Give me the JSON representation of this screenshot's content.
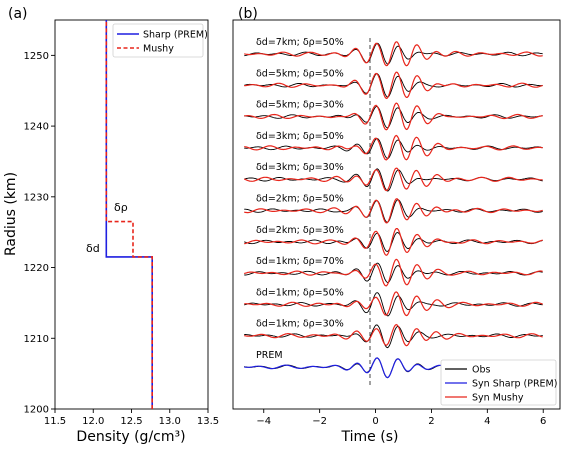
{
  "chart_data": [
    {
      "type": "line",
      "panel_label": "(a)",
      "xlabel": "Density (g/cm³)",
      "ylabel": "Radius (km)",
      "xlim": [
        11.5,
        13.5
      ],
      "ylim": [
        1200,
        1255
      ],
      "x_ticks": [
        "11.5",
        "12.0",
        "12.5",
        "13.0",
        "13.5"
      ],
      "y_ticks": [
        "1200",
        "1210",
        "1220",
        "1230",
        "1240",
        "1250"
      ],
      "legend_position": "top-right",
      "annotations": [
        "δd",
        "δρ"
      ],
      "colors": {
        "sharp": "#1f1fe0",
        "mushy": "#e8261c"
      },
      "series": [
        {
          "name": "Sharp (PREM)",
          "style": "solid",
          "x": [
            12.77,
            12.77,
            12.17,
            12.17
          ],
          "y": [
            1200,
            1221.5,
            1221.5,
            1255
          ]
        },
        {
          "name": "Mushy",
          "style": "dashed",
          "x": [
            12.77,
            12.77,
            12.52,
            12.52,
            12.17,
            12.17
          ],
          "y": [
            1200,
            1221.5,
            1221.5,
            1226.5,
            1226.5,
            1255
          ]
        }
      ]
    },
    {
      "type": "line",
      "panel_label": "(b)",
      "xlabel": "Time (s)",
      "xlim": [
        -5.1,
        6.6
      ],
      "x_ticks": [
        "−4",
        "−2",
        "0",
        "2",
        "4",
        "6"
      ],
      "legend_position": "bottom-right",
      "colors": {
        "obs": "#000000",
        "syn_sharp": "#1f1fe0",
        "syn_mushy": "#e8261c"
      },
      "legend": [
        "Obs",
        "Syn Sharp (PREM)",
        "Syn Mushy"
      ],
      "traces": [
        "δd=7km; δρ=50%",
        "δd=5km; δρ=50%",
        "δd=5km; δρ=30%",
        "δd=3km; δρ=50%",
        "δd=3km; δρ=30%",
        "δd=2km; δρ=50%",
        "δd=2km; δρ=30%",
        "δd=1km; δρ=70%",
        "δd=1km; δρ=50%",
        "δd=1km; δρ=30%",
        "PREM"
      ]
    }
  ]
}
